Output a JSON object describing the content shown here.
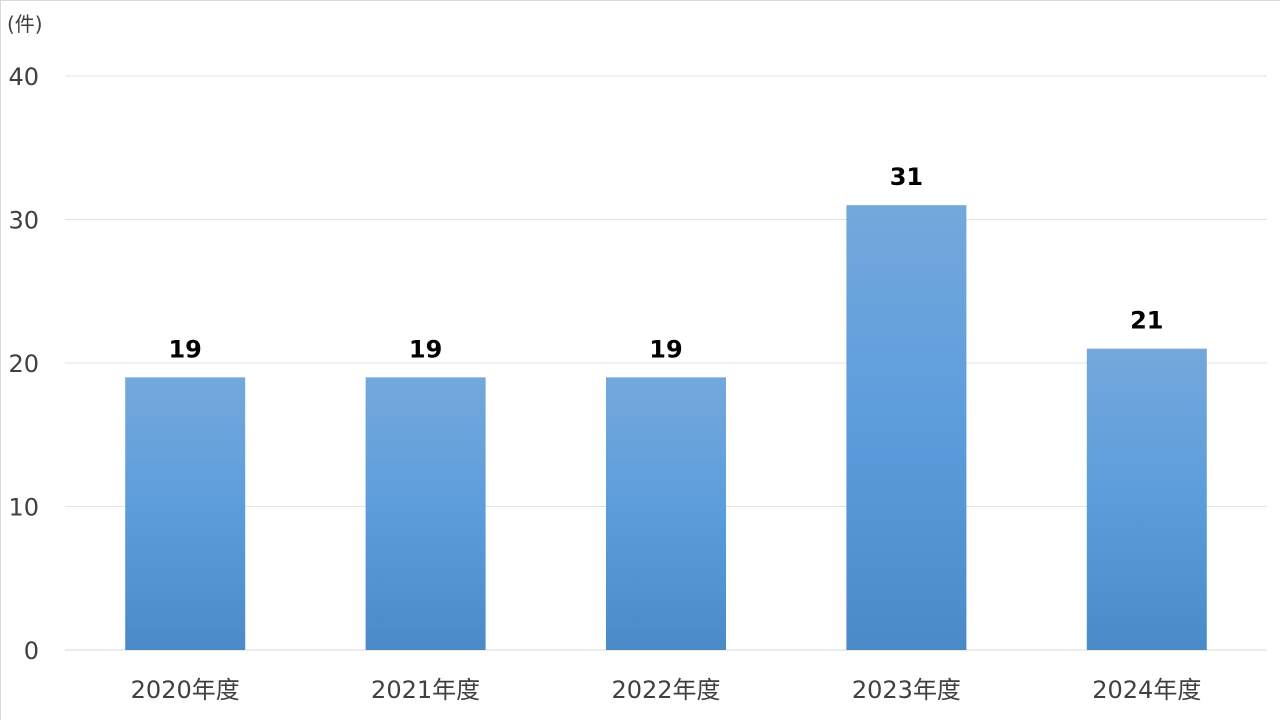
{
  "chart_data": {
    "type": "bar",
    "unit_label": "(件)",
    "categories": [
      "2020年度",
      "2021年度",
      "2022年度",
      "2023年度",
      "2024年度"
    ],
    "values": [
      19,
      19,
      19,
      31,
      21
    ],
    "y_ticks": [
      "0",
      "10",
      "20",
      "30",
      "40"
    ],
    "ylim": [
      0,
      40
    ],
    "grid": true,
    "data_labels": true,
    "bar_color_top": "#74a8dc",
    "bar_color_bottom": "#4a8ac8"
  }
}
